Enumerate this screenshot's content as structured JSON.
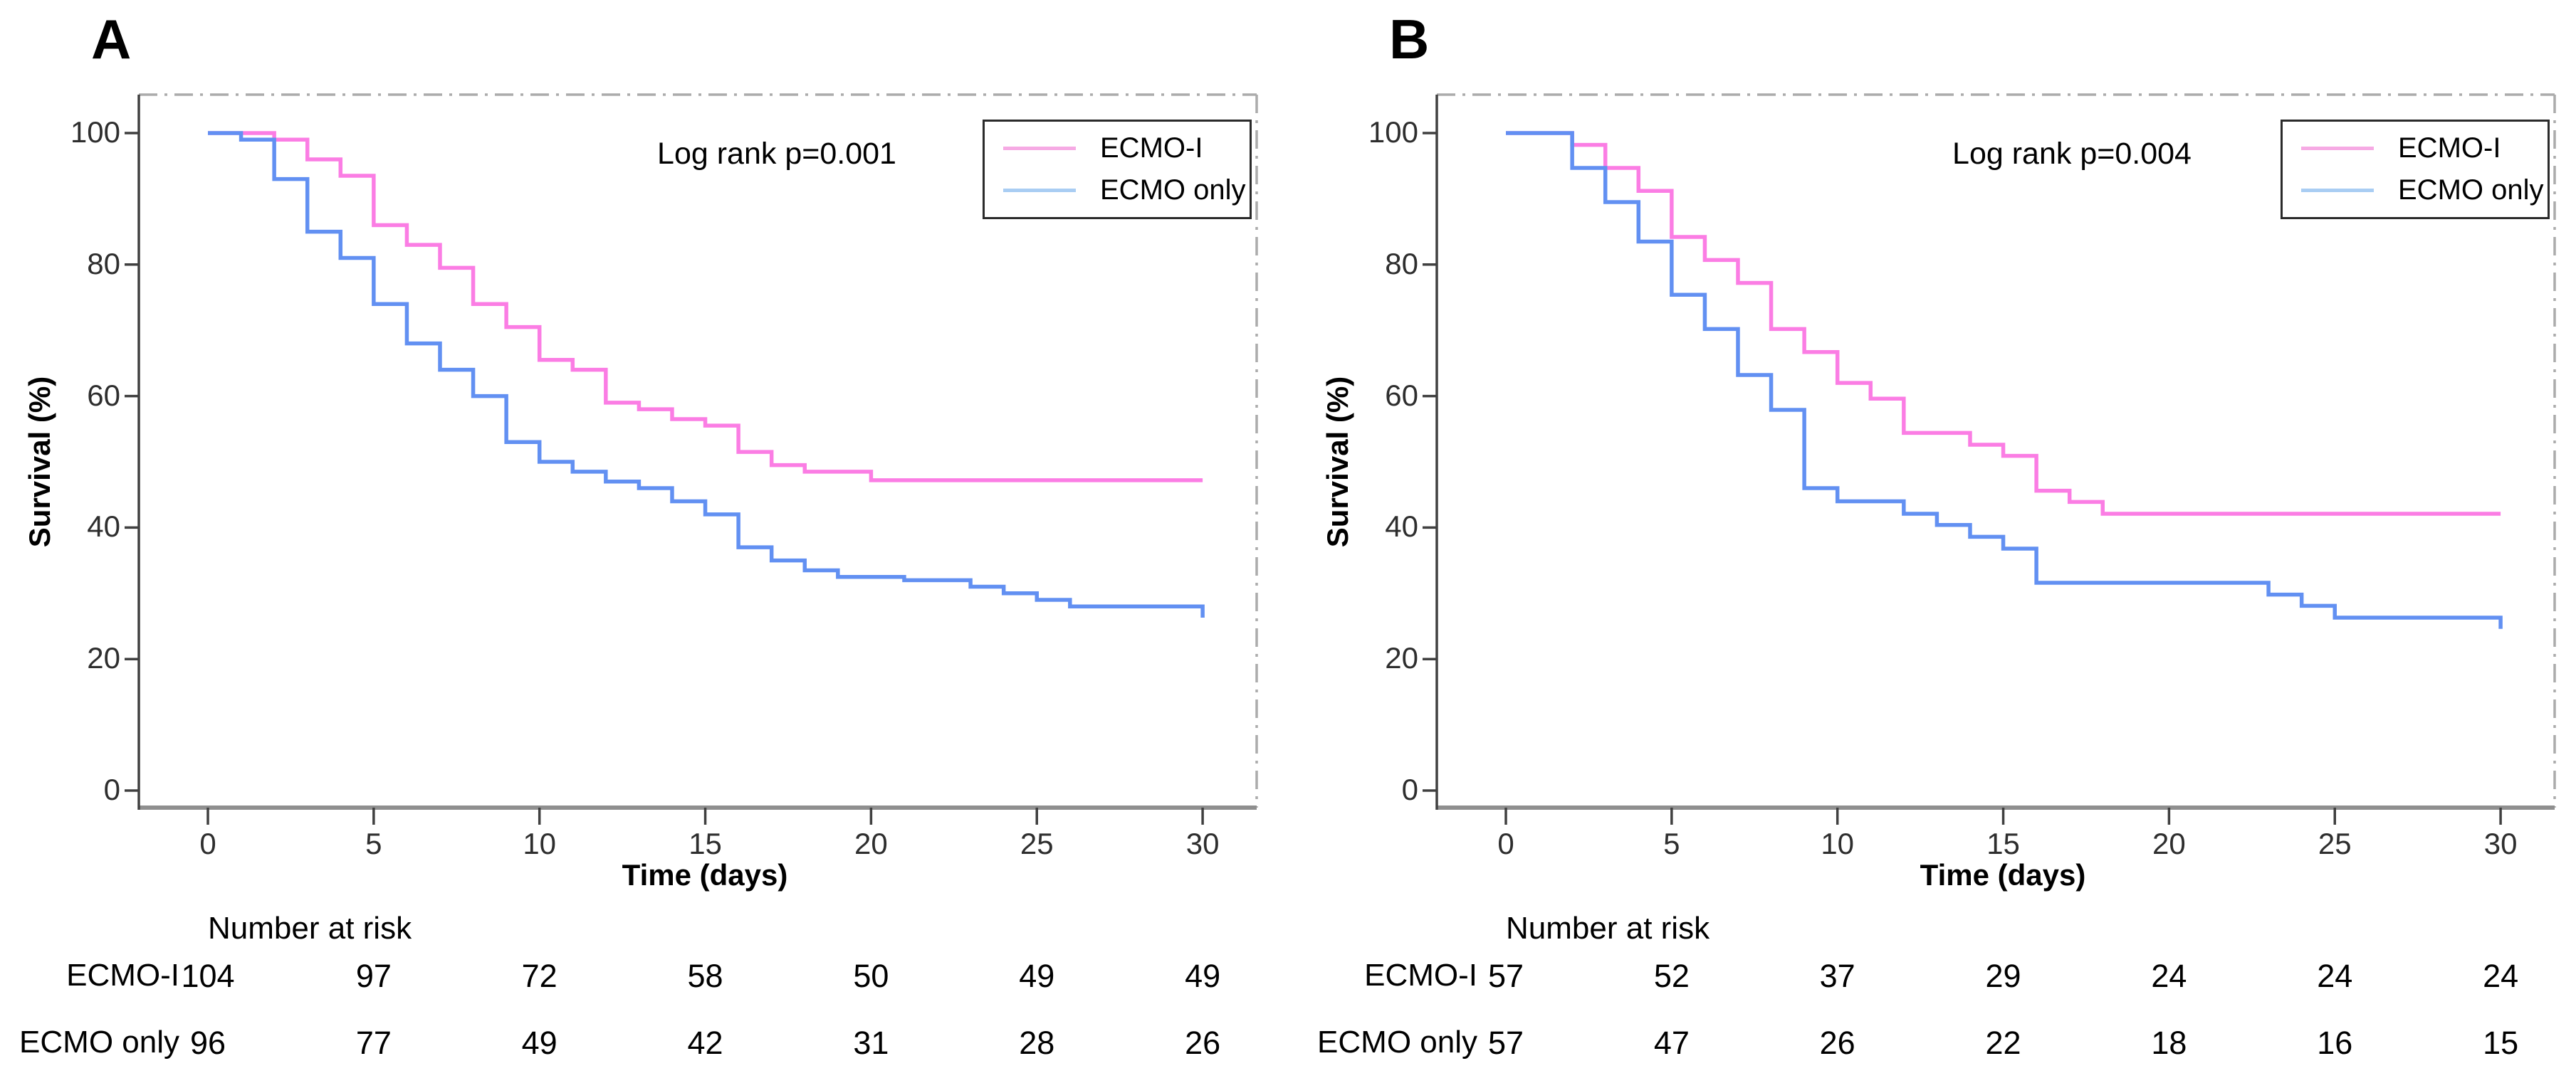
{
  "colors": {
    "ecmo_i_line": "#fb7de4",
    "ecmo_only_line": "#6290f2",
    "ecmo_i_legend_swatch": "#f6aae4",
    "ecmo_only_legend_swatch": "#a9cdf3",
    "frame_dashdot": "#ababab",
    "frame_bottom": "#8f8f8f",
    "axis": "#404040"
  },
  "chart_data": [
    {
      "panel_label": "A",
      "type": "line",
      "step": true,
      "annotation": "Log rank p=0.001",
      "xlabel": "Time (days)",
      "ylabel": "Survival (%)",
      "xlim": [
        0,
        30
      ],
      "ylim": [
        0,
        100
      ],
      "x_ticks": [
        0,
        5,
        10,
        15,
        20,
        25,
        30
      ],
      "y_ticks": [
        0,
        20,
        40,
        60,
        80,
        100
      ],
      "legend_position": "top-right",
      "grid": false,
      "legend": [
        {
          "label": "ECMO-I",
          "swatch_color": "#f6aae4"
        },
        {
          "label": "ECMO only",
          "swatch_color": "#a9cdf3"
        }
      ],
      "series": [
        {
          "name": "ECMO-I",
          "color": "#fb7de4",
          "points": [
            [
              0,
              100
            ],
            [
              2,
              99
            ],
            [
              3,
              96
            ],
            [
              4,
              93.5
            ],
            [
              5,
              86
            ],
            [
              6,
              83
            ],
            [
              7,
              79.5
            ],
            [
              8,
              74
            ],
            [
              9,
              70.5
            ],
            [
              10,
              65.5
            ],
            [
              11,
              64
            ],
            [
              12,
              59
            ],
            [
              13,
              58
            ],
            [
              14,
              56.5
            ],
            [
              15,
              55.5
            ],
            [
              16,
              51.5
            ],
            [
              17,
              49.5
            ],
            [
              18,
              48.5
            ],
            [
              20,
              47.2
            ],
            [
              30,
              47.2
            ]
          ]
        },
        {
          "name": "ECMO only",
          "color": "#6290f2",
          "points": [
            [
              0,
              100
            ],
            [
              1,
              99
            ],
            [
              2,
              93
            ],
            [
              3,
              85
            ],
            [
              4,
              81
            ],
            [
              5,
              74
            ],
            [
              6,
              68
            ],
            [
              7,
              64
            ],
            [
              8,
              60
            ],
            [
              9,
              53
            ],
            [
              10,
              50
            ],
            [
              11,
              48.5
            ],
            [
              12,
              47
            ],
            [
              13,
              46
            ],
            [
              14,
              44
            ],
            [
              15,
              42
            ],
            [
              16,
              37
            ],
            [
              17,
              35
            ],
            [
              18,
              33.5
            ],
            [
              19,
              32.5
            ],
            [
              21,
              32
            ],
            [
              23,
              31
            ],
            [
              24,
              30
            ],
            [
              25,
              29
            ],
            [
              26,
              28
            ],
            [
              30,
              26.3
            ]
          ]
        }
      ],
      "risk_table": {
        "header": "Number at risk",
        "time_points": [
          0,
          5,
          10,
          15,
          20,
          25,
          30
        ],
        "rows": [
          {
            "label": "ECMO-I",
            "values": [
              "104",
              "97",
              "72",
              "58",
              "50",
              "49",
              "49"
            ]
          },
          {
            "label": "ECMO only",
            "values": [
              "96",
              "77",
              "49",
              "42",
              "31",
              "28",
              "26"
            ]
          }
        ]
      }
    },
    {
      "panel_label": "B",
      "type": "line",
      "step": true,
      "annotation": "Log rank p=0.004",
      "xlabel": "Time (days)",
      "ylabel": "Survival (%)",
      "xlim": [
        0,
        30
      ],
      "ylim": [
        0,
        100
      ],
      "x_ticks": [
        0,
        5,
        10,
        15,
        20,
        25,
        30
      ],
      "y_ticks": [
        0,
        20,
        40,
        60,
        80,
        100
      ],
      "legend_position": "top-right",
      "grid": false,
      "legend": [
        {
          "label": "ECMO-I",
          "swatch_color": "#f6aae4"
        },
        {
          "label": "ECMO only",
          "swatch_color": "#a9cdf3"
        }
      ],
      "series": [
        {
          "name": "ECMO-I",
          "color": "#fb7de4",
          "points": [
            [
              0,
              100
            ],
            [
              2,
              98.2
            ],
            [
              3,
              94.7
            ],
            [
              4,
              91.2
            ],
            [
              5,
              84.2
            ],
            [
              6,
              80.7
            ],
            [
              7,
              77.2
            ],
            [
              8,
              70.2
            ],
            [
              9,
              66.7
            ],
            [
              10,
              62
            ],
            [
              11,
              59.6
            ],
            [
              12,
              54.4
            ],
            [
              14,
              52.6
            ],
            [
              15,
              50.9
            ],
            [
              16,
              45.6
            ],
            [
              17,
              43.9
            ],
            [
              18,
              42.1
            ],
            [
              30,
              42.1
            ]
          ]
        },
        {
          "name": "ECMO only",
          "color": "#6290f2",
          "points": [
            [
              0,
              100
            ],
            [
              2,
              94.7
            ],
            [
              3,
              89.5
            ],
            [
              4,
              83.5
            ],
            [
              5,
              75.4
            ],
            [
              6,
              70.2
            ],
            [
              7,
              63.2
            ],
            [
              8,
              57.9
            ],
            [
              9,
              46
            ],
            [
              10,
              44
            ],
            [
              12,
              42.1
            ],
            [
              13,
              40.4
            ],
            [
              14,
              38.6
            ],
            [
              15,
              36.8
            ],
            [
              16,
              31.6
            ],
            [
              23,
              29.8
            ],
            [
              24,
              28.1
            ],
            [
              25,
              26.3
            ],
            [
              30,
              24.6
            ]
          ]
        }
      ],
      "risk_table": {
        "header": "Number at risk",
        "time_points": [
          0,
          5,
          10,
          15,
          20,
          25,
          30
        ],
        "rows": [
          {
            "label": "ECMO-I",
            "values": [
              "57",
              "52",
              "37",
              "29",
              "24",
              "24",
              "24"
            ]
          },
          {
            "label": "ECMO only",
            "values": [
              "57",
              "47",
              "26",
              "22",
              "18",
              "16",
              "15"
            ]
          }
        ]
      }
    }
  ]
}
